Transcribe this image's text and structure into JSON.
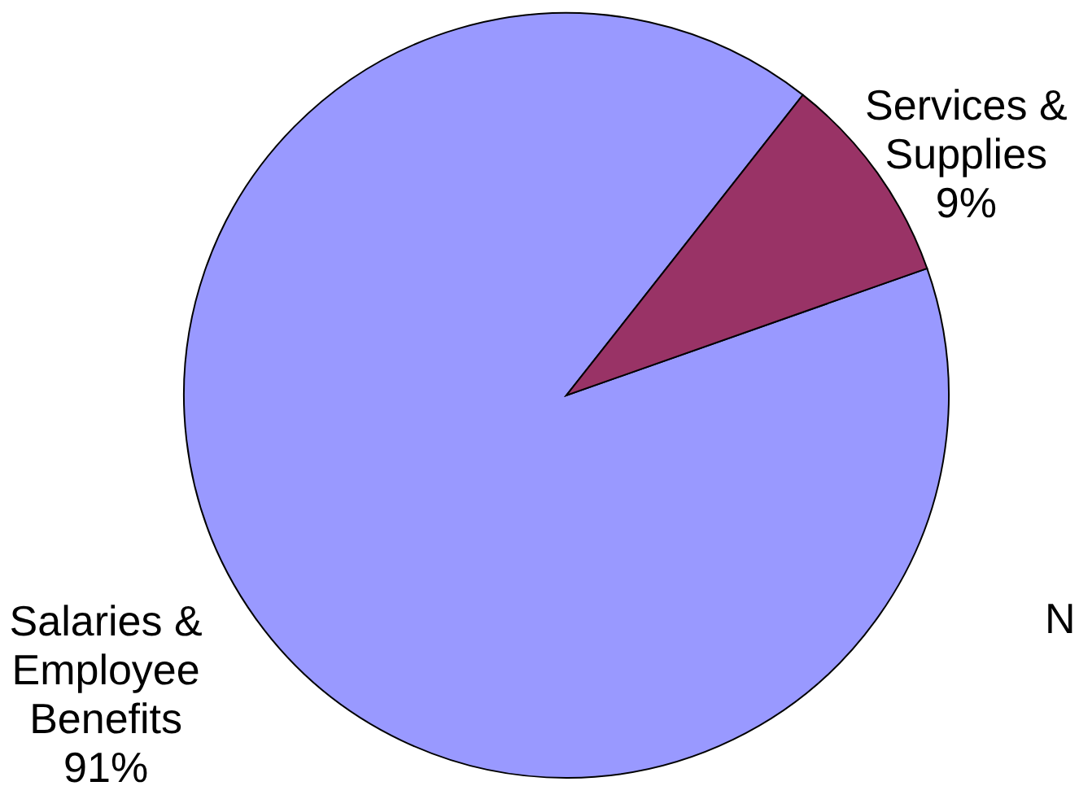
{
  "chart_data": {
    "type": "pie",
    "categories": [
      "Salaries & Employee Benefits",
      "Services & Supplies"
    ],
    "values": [
      91,
      9
    ],
    "colors": [
      "#9999ff",
      "#993366"
    ],
    "value_labels": [
      "91%",
      "9%"
    ],
    "annotations": [
      "N"
    ]
  }
}
